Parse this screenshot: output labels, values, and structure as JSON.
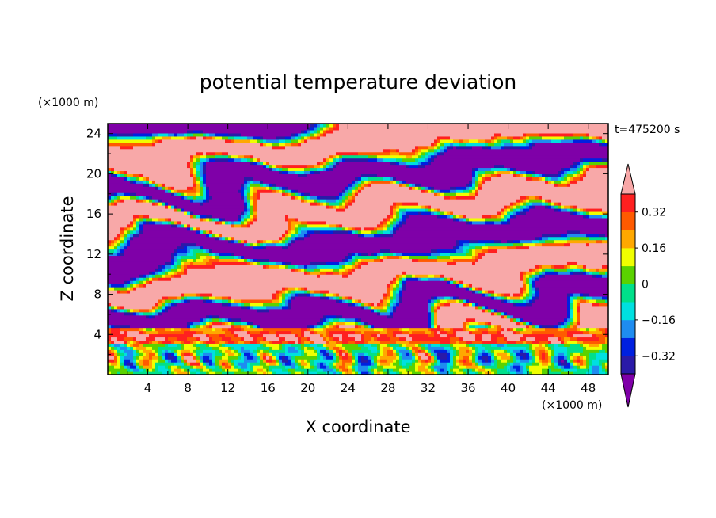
{
  "chart_data": {
    "type": "heatmap",
    "title": "potential temperature deviation",
    "xlabel": "X coordinate",
    "ylabel": "Z coordinate",
    "x_unit": "(×1000 m)",
    "y_unit": "(×1000 m)",
    "time_label": "t=475200 s",
    "xlim": [
      0,
      50
    ],
    "ylim": [
      0,
      25
    ],
    "x_ticks": [
      4,
      8,
      12,
      16,
      20,
      24,
      28,
      32,
      36,
      40,
      44,
      48
    ],
    "y_ticks": [
      4,
      8,
      12,
      16,
      20,
      24
    ],
    "colorbar": {
      "levels": [
        -0.4,
        -0.32,
        -0.24,
        -0.16,
        -0.08,
        0,
        0.08,
        0.16,
        0.24,
        0.32,
        0.4
      ],
      "tick_labels": [
        "0.32",
        "0.16",
        "0",
        "−0.16",
        "−0.32"
      ],
      "tick_values": [
        0.32,
        0.16,
        0,
        -0.16,
        -0.32
      ],
      "colors": [
        "#7f00a8",
        "#2a1aa8",
        "#0020e0",
        "#1e8cf0",
        "#00e0e0",
        "#00e08a",
        "#5ad200",
        "#f0ff00",
        "#ffa800",
        "#ff5a00",
        "#ff2020",
        "#f8a8a8"
      ],
      "extend": "both"
    },
    "field": [
      {
        "z_range": [
          0,
          3.2
        ],
        "pattern": "mostly green/cyan/yellow with columns of red and blue"
      },
      {
        "z_range": [
          3.2,
          4.7
        ],
        "pattern": "thin layer of pink and red"
      },
      {
        "z_range": [
          4.7,
          25
        ],
        "pattern": "alternating sloping layers of purple (negative) and pink (positive) bounded by colored fronts"
      }
    ]
  }
}
